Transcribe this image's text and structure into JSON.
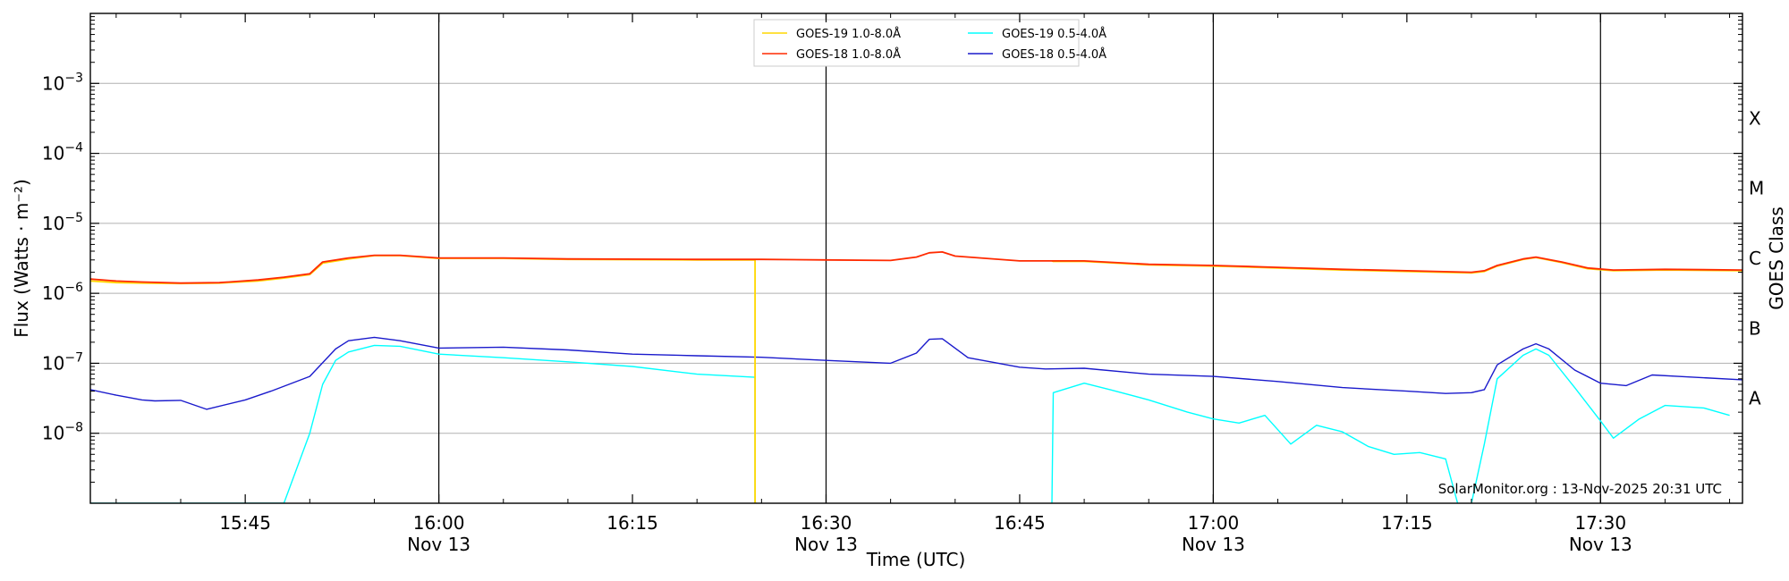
{
  "chart_data": {
    "type": "line",
    "xlabel": "Time (UTC)",
    "ylabel": "Flux (Watts · m⁻²)",
    "ylabel_right": "GOES Class",
    "x_range": [
      "15:33",
      "17:41"
    ],
    "y_range_log10": [
      -9,
      -2
    ],
    "y_scale": "log",
    "grid": "horizontal at each decade",
    "y_ticks": [
      {
        "exp": -3,
        "base": "10",
        "sup": "−3"
      },
      {
        "exp": -4,
        "base": "10",
        "sup": "−4"
      },
      {
        "exp": -5,
        "base": "10",
        "sup": "−5"
      },
      {
        "exp": -6,
        "base": "10",
        "sup": "−6"
      },
      {
        "exp": -7,
        "base": "10",
        "sup": "−7"
      },
      {
        "exp": -8,
        "base": "10",
        "sup": "−8"
      }
    ],
    "x_ticks": [
      {
        "time": "15:45",
        "date": ""
      },
      {
        "time": "16:00",
        "date": "Nov 13",
        "vline": true
      },
      {
        "time": "16:15",
        "date": ""
      },
      {
        "time": "16:30",
        "date": "Nov 13",
        "vline": true
      },
      {
        "time": "16:45",
        "date": ""
      },
      {
        "time": "17:00",
        "date": "Nov 13",
        "vline": true
      },
      {
        "time": "17:15",
        "date": ""
      },
      {
        "time": "17:30",
        "date": "Nov 13",
        "vline": true
      }
    ],
    "goes_classes": [
      {
        "label": "X",
        "exp": -4
      },
      {
        "label": "M",
        "exp": -5
      },
      {
        "label": "C",
        "exp": -6
      },
      {
        "label": "B",
        "exp": -7
      },
      {
        "label": "A",
        "exp": -8
      }
    ],
    "legend": {
      "placement": "top-center",
      "entries": [
        {
          "label": "GOES-19 1.0-8.0Å",
          "color": "#ffd700"
        },
        {
          "label": "GOES-19 0.5-4.0Å",
          "color": "#00ffff"
        },
        {
          "label": "GOES-18 1.0-8.0Å",
          "color": "#ff2a00"
        },
        {
          "label": "GOES-18 0.5-4.0Å",
          "color": "#1a1acc"
        }
      ]
    },
    "annotation": "SolarMonitor.org : 13-Nov-2025 20:31 UTC",
    "series": [
      {
        "name": "GOES-18 1.0-8.0Å",
        "color": "#ff2a00",
        "x": [
          "15:33",
          "15:35",
          "15:37",
          "15:40",
          "15:43",
          "15:46",
          "15:48",
          "15:50",
          "15:51",
          "15:53",
          "15:55",
          "15:57",
          "16:00",
          "16:05",
          "16:10",
          "16:20",
          "16:25",
          "16:30",
          "16:35",
          "16:37",
          "16:38",
          "16:39",
          "16:40",
          "16:45",
          "16:50",
          "16:55",
          "17:00",
          "17:05",
          "17:10",
          "17:15",
          "17:20",
          "17:21",
          "17:22",
          "17:24",
          "17:25",
          "17:27",
          "17:29",
          "17:31",
          "17:35",
          "17:41"
        ],
        "y": [
          1.6e-06,
          1.5e-06,
          1.45e-06,
          1.4e-06,
          1.42e-06,
          1.55e-06,
          1.7e-06,
          1.9e-06,
          2.8e-06,
          3.2e-06,
          3.5e-06,
          3.5e-06,
          3.2e-06,
          3.2e-06,
          3.1e-06,
          3.05e-06,
          3.05e-06,
          3e-06,
          2.95e-06,
          3.3e-06,
          3.8e-06,
          3.9e-06,
          3.4e-06,
          2.9e-06,
          2.9e-06,
          2.6e-06,
          2.5e-06,
          2.35e-06,
          2.2e-06,
          2.1e-06,
          2e-06,
          2.1e-06,
          2.5e-06,
          3.1e-06,
          3.3e-06,
          2.8e-06,
          2.3e-06,
          2.15e-06,
          2.2e-06,
          2.15e-06
        ]
      },
      {
        "name": "GOES-19 1.0-8.0Å",
        "color": "#ffd700",
        "x": [
          "15:33",
          "15:35",
          "15:37",
          "15:40",
          "15:43",
          "15:46",
          "15:48",
          "15:50",
          "15:51",
          "15:53",
          "15:55",
          "15:57",
          "16:00",
          "16:05",
          "16:10",
          "16:20",
          "16:24.5",
          "16:24.5",
          "16:24.6",
          "16:24.6",
          "16:47.5",
          "16:47.5",
          "16:47.6",
          "16:50",
          "16:55",
          "17:00",
          "17:05",
          "17:10",
          "17:15",
          "17:20",
          "17:21",
          "17:22",
          "17:24",
          "17:25",
          "17:27",
          "17:29",
          "17:31",
          "17:35",
          "17:41"
        ],
        "y": [
          1.5e-06,
          1.42e-06,
          1.4e-06,
          1.38e-06,
          1.4e-06,
          1.5e-06,
          1.65e-06,
          1.85e-06,
          2.7e-06,
          3.1e-06,
          3.45e-06,
          3.45e-06,
          3.15e-06,
          3.15e-06,
          3.05e-06,
          3e-06,
          3e-06,
          1e-09,
          1e-09,
          null,
          null,
          2.9e-06,
          2.85e-06,
          2.85e-06,
          2.55e-06,
          2.45e-06,
          2.3e-06,
          2.15e-06,
          2.05e-06,
          1.95e-06,
          2.05e-06,
          2.45e-06,
          3.05e-06,
          3.25e-06,
          2.75e-06,
          2.25e-06,
          2.1e-06,
          2.15e-06,
          2.1e-06
        ]
      },
      {
        "name": "GOES-18 0.5-4.0Å",
        "color": "#1a1acc",
        "x": [
          "15:33",
          "15:35",
          "15:37",
          "15:38",
          "15:40",
          "15:42",
          "15:45",
          "15:47",
          "15:50",
          "15:52",
          "15:53",
          "15:55",
          "15:57",
          "16:00",
          "16:05",
          "16:10",
          "16:15",
          "16:20",
          "16:25",
          "16:30",
          "16:35",
          "16:37",
          "16:38",
          "16:39",
          "16:41",
          "16:45",
          "16:47",
          "16:50",
          "16:55",
          "17:00",
          "17:05",
          "17:10",
          "17:15",
          "17:18",
          "17:20",
          "17:21",
          "17:22",
          "17:24",
          "17:25",
          "17:26",
          "17:28",
          "17:30",
          "17:32",
          "17:34",
          "17:36",
          "17:41"
        ],
        "y": [
          4.2e-08,
          3.5e-08,
          3e-08,
          2.9e-08,
          2.95e-08,
          2.2e-08,
          3e-08,
          4e-08,
          6.5e-08,
          1.6e-07,
          2.1e-07,
          2.35e-07,
          2.1e-07,
          1.65e-07,
          1.7e-07,
          1.55e-07,
          1.35e-07,
          1.28e-07,
          1.22e-07,
          1.1e-07,
          1e-07,
          1.4e-07,
          2.2e-07,
          2.25e-07,
          1.2e-07,
          8.8e-08,
          8.3e-08,
          8.5e-08,
          7e-08,
          6.5e-08,
          5.5e-08,
          4.5e-08,
          4e-08,
          3.7e-08,
          3.8e-08,
          4.2e-08,
          9.5e-08,
          1.6e-07,
          1.9e-07,
          1.6e-07,
          8e-08,
          5.2e-08,
          4.8e-08,
          6.8e-08,
          6.5e-08,
          5.8e-08
        ]
      },
      {
        "name": "GOES-19 0.5-4.0Å",
        "color": "#00ffff",
        "x": [
          "15:33",
          "15:48",
          "15:50",
          "15:51",
          "15:52",
          "15:53",
          "15:55",
          "15:57",
          "16:00",
          "16:05",
          "16:10",
          "16:15",
          "16:20",
          "16:24.5",
          "16:24.5",
          "16:24.6",
          "16:24.6",
          "16:47.5",
          "16:47.5",
          "16:47.6",
          "16:50",
          "16:52",
          "16:55",
          "16:58",
          "17:00",
          "17:02",
          "17:04",
          "17:06",
          "17:08",
          "17:10",
          "17:12",
          "17:14",
          "17:16",
          "17:18",
          "17:19",
          "17:20",
          "17:21",
          "17:22",
          "17:24",
          "17:25",
          "17:26",
          "17:28",
          "17:30",
          "17:31",
          "17:33",
          "17:35",
          "17:38",
          "17:40"
        ],
        "y": [
          1e-09,
          1e-09,
          1e-08,
          5e-08,
          1.1e-07,
          1.45e-07,
          1.8e-07,
          1.75e-07,
          1.35e-07,
          1.2e-07,
          1.05e-07,
          9e-08,
          7e-08,
          6.3e-08,
          1e-09,
          1e-09,
          null,
          null,
          1e-09,
          3.8e-08,
          5.2e-08,
          4.2e-08,
          3e-08,
          2e-08,
          1.6e-08,
          1.4e-08,
          1.8e-08,
          7e-09,
          1.3e-08,
          1.05e-08,
          6.5e-09,
          5e-09,
          5.3e-09,
          4.3e-09,
          9e-10,
          1e-09,
          7e-09,
          6e-08,
          1.3e-07,
          1.6e-07,
          1.3e-07,
          4.5e-08,
          1.5e-08,
          8.5e-09,
          1.6e-08,
          2.5e-08,
          2.3e-08,
          1.8e-08
        ]
      }
    ]
  }
}
